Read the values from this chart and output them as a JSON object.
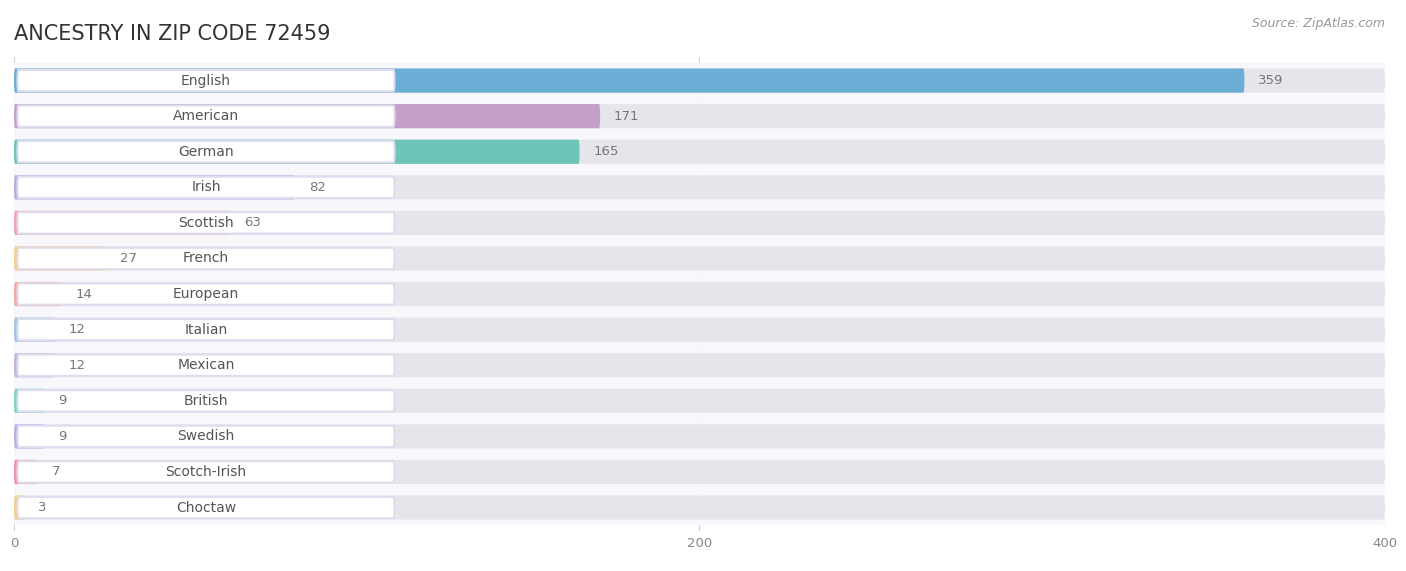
{
  "title": "ANCESTRY IN ZIP CODE 72459",
  "source": "Source: ZipAtlas.com",
  "categories": [
    "English",
    "American",
    "German",
    "Irish",
    "Scottish",
    "French",
    "European",
    "Italian",
    "Mexican",
    "British",
    "Swedish",
    "Scotch-Irish",
    "Choctaw"
  ],
  "values": [
    359,
    171,
    165,
    82,
    63,
    27,
    14,
    12,
    12,
    9,
    9,
    7,
    3
  ],
  "bar_colors": [
    "#6aaed6",
    "#c4a0c8",
    "#6cc5b8",
    "#b3aee0",
    "#f4a0b0",
    "#f9cc8a",
    "#f4a898",
    "#a0c4e8",
    "#c8b0d8",
    "#7dd4c0",
    "#b8b0e8",
    "#f98aaa",
    "#f9cc8a"
  ],
  "bar_bg_color": "#e8e8e8",
  "row_bg_color": "#f0f0f5",
  "xlim": [
    0,
    400
  ],
  "xticks": [
    0,
    200,
    400
  ],
  "title_fontsize": 15,
  "label_fontsize": 10,
  "value_fontsize": 9.5,
  "source_fontsize": 9
}
